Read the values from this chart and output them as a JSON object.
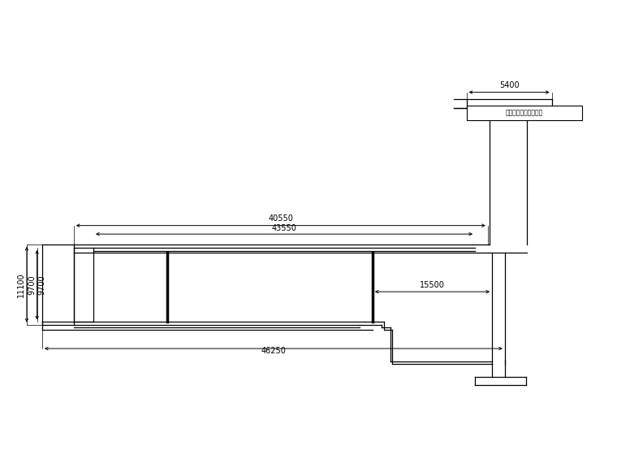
{
  "bg_color": "#ffffff",
  "line_color": "#000000",
  "fig_width": 7.6,
  "fig_height": 5.7,
  "dpi": 100,
  "label_5400": "5400",
  "label_40550": "40550",
  "label_43550": "43550",
  "label_11100": "11100",
  "label_9700": "9700",
  "label_15500": "15500",
  "label_46250": "46250",
  "annotation_text": "原材压实制已完成部分",
  "font_size": 7.0
}
